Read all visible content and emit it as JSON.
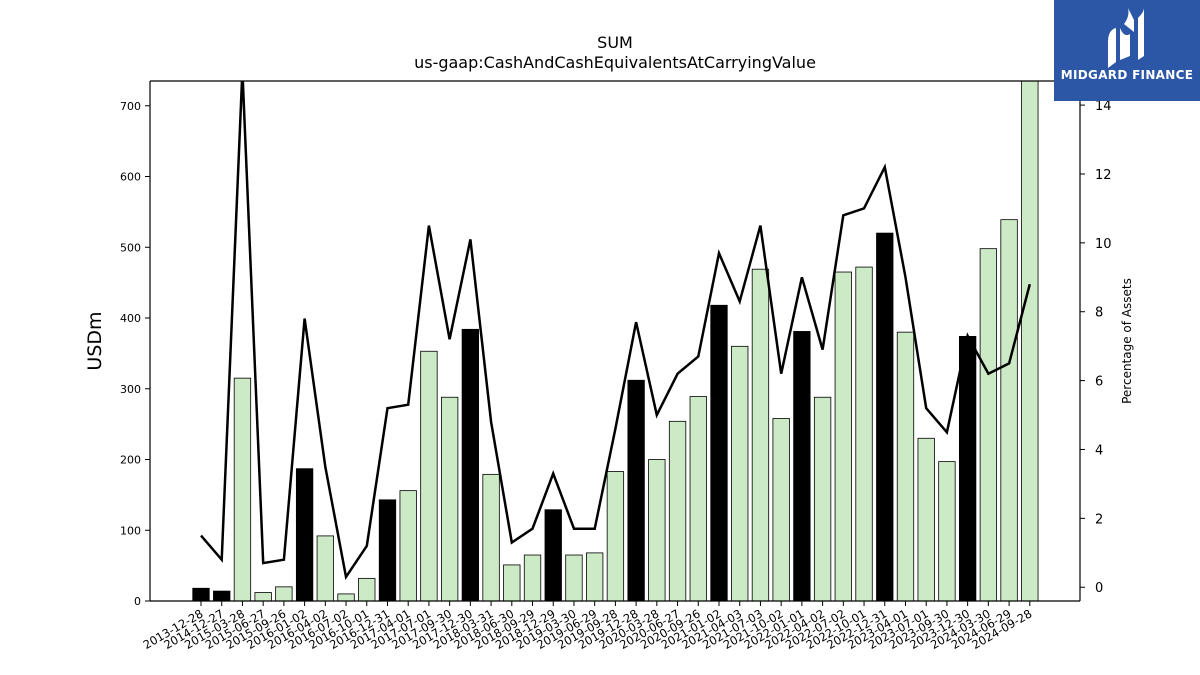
{
  "title": "SUM",
  "subtitle": "us-gaap:CashAndCashEquivalentsAtCarryingValue",
  "logo": {
    "text": "MIDGARD FINANCE"
  },
  "chart_data": {
    "type": "bar",
    "title": "SUM",
    "subtitle": "us-gaap:CashAndCashEquivalentsAtCarryingValue",
    "ylabel": "USDm",
    "y2label": "Percentage of Assets",
    "ylim": [
      0,
      735
    ],
    "y2lim": [
      -0.4,
      14.7
    ],
    "yticks": [
      0,
      100,
      200,
      300,
      400,
      500,
      600,
      700
    ],
    "y2ticks": [
      0,
      2,
      4,
      6,
      8,
      10,
      12,
      14
    ],
    "colors": {
      "annual": "#000000",
      "quarterly": "#cdeac6",
      "line": "#000000"
    },
    "categories": [
      "2013-12-28",
      "2014-12-27",
      "2015-03-28",
      "2015-06-27",
      "2015-09-26",
      "2016-01-02",
      "2016-04-02",
      "2016-07-02",
      "2016-10-01",
      "2016-12-31",
      "2017-04-01",
      "2017-07-01",
      "2017-09-30",
      "2017-12-30",
      "2018-03-31",
      "2018-06-30",
      "2018-09-29",
      "2018-12-29",
      "2019-03-30",
      "2019-06-29",
      "2019-09-28",
      "2019-12-28",
      "2020-03-28",
      "2020-06-27",
      "2020-09-26",
      "2021-01-02",
      "2021-04-03",
      "2021-07-03",
      "2021-10-02",
      "2022-01-01",
      "2022-04-02",
      "2022-07-02",
      "2022-10-01",
      "2022-12-31",
      "2023-04-01",
      "2023-07-01",
      "2023-09-30",
      "2023-12-30",
      "2024-03-30",
      "2024-06-29",
      "2024-09-28"
    ],
    "series": [
      {
        "type": "bar",
        "values": [
          18,
          14,
          315,
          12,
          20,
          187,
          92,
          10,
          32,
          143,
          156,
          353,
          288,
          384,
          179,
          51,
          65,
          129,
          65,
          68,
          183,
          312,
          200,
          254,
          289,
          418,
          360,
          469,
          258,
          381,
          288,
          465,
          472,
          520,
          380,
          230,
          197,
          374,
          498,
          539,
          740
        ],
        "bar_kind": [
          "annual",
          "annual",
          "quarterly",
          "quarterly",
          "quarterly",
          "annual",
          "quarterly",
          "quarterly",
          "quarterly",
          "annual",
          "quarterly",
          "quarterly",
          "quarterly",
          "annual",
          "quarterly",
          "quarterly",
          "quarterly",
          "annual",
          "quarterly",
          "quarterly",
          "quarterly",
          "annual",
          "quarterly",
          "quarterly",
          "quarterly",
          "annual",
          "quarterly",
          "quarterly",
          "quarterly",
          "annual",
          "quarterly",
          "quarterly",
          "quarterly",
          "annual",
          "quarterly",
          "quarterly",
          "quarterly",
          "annual",
          "quarterly",
          "quarterly",
          "quarterly"
        ]
      },
      {
        "type": "line",
        "axis": "right",
        "values": [
          1.5,
          0.8,
          15.0,
          0.7,
          0.8,
          7.8,
          3.5,
          0.3,
          1.2,
          5.2,
          5.3,
          10.5,
          7.2,
          10.1,
          4.8,
          1.3,
          1.7,
          3.3,
          1.7,
          1.7,
          4.6,
          7.7,
          5.0,
          6.2,
          6.7,
          9.7,
          8.3,
          10.5,
          6.2,
          9.0,
          6.9,
          10.8,
          11.0,
          12.2,
          9.0,
          5.2,
          4.5,
          7.3,
          6.2,
          6.5,
          8.8
        ]
      }
    ]
  }
}
